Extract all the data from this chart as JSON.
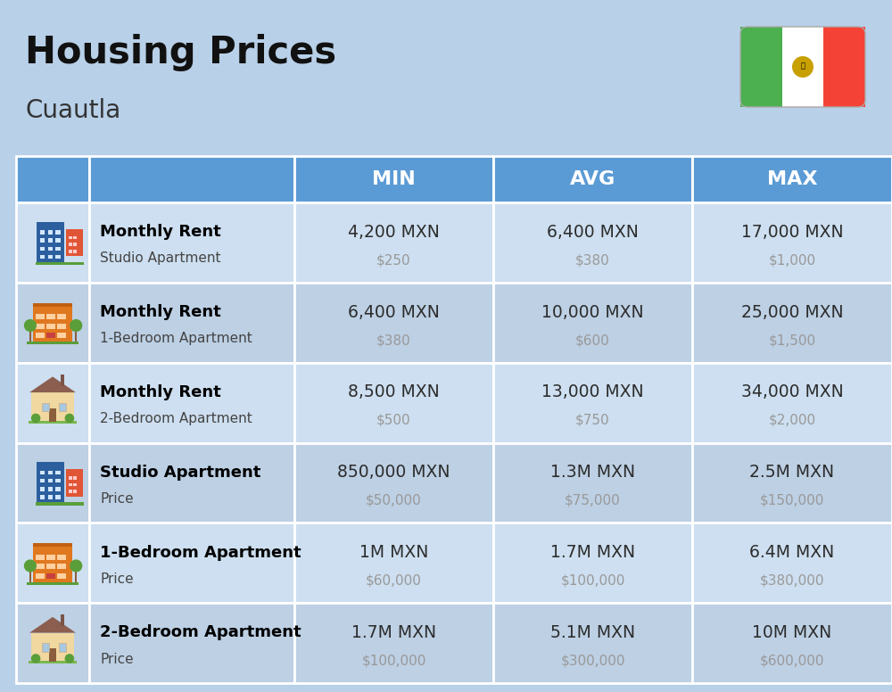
{
  "title": "Housing Prices",
  "subtitle": "Cuautla",
  "bg_color": "#b8d0e8",
  "header_bg": "#5b9bd5",
  "header_text_color": "#ffffff",
  "row_bg_light": "#cddff0",
  "row_bg_dark": "#bdd0e4",
  "col_headers": [
    "MIN",
    "AVG",
    "MAX"
  ],
  "rows": [
    {
      "bold_label": "Monthly Rent",
      "sub_label": "Studio Apartment",
      "min_main": "4,200 MXN",
      "min_sub": "$250",
      "avg_main": "6,400 MXN",
      "avg_sub": "$380",
      "max_main": "17,000 MXN",
      "max_sub": "$1,000",
      "icon_type": "blue_office"
    },
    {
      "bold_label": "Monthly Rent",
      "sub_label": "1-Bedroom Apartment",
      "min_main": "6,400 MXN",
      "min_sub": "$380",
      "avg_main": "10,000 MXN",
      "avg_sub": "$600",
      "max_main": "25,000 MXN",
      "max_sub": "$1,500",
      "icon_type": "orange_apartment"
    },
    {
      "bold_label": "Monthly Rent",
      "sub_label": "2-Bedroom Apartment",
      "min_main": "8,500 MXN",
      "min_sub": "$500",
      "avg_main": "13,000 MXN",
      "avg_sub": "$750",
      "max_main": "34,000 MXN",
      "max_sub": "$2,000",
      "icon_type": "beige_house"
    },
    {
      "bold_label": "Studio Apartment",
      "sub_label": "Price",
      "min_main": "850,000 MXN",
      "min_sub": "$50,000",
      "avg_main": "1.3M MXN",
      "avg_sub": "$75,000",
      "max_main": "2.5M MXN",
      "max_sub": "$150,000",
      "icon_type": "blue_office"
    },
    {
      "bold_label": "1-Bedroom Apartment",
      "sub_label": "Price",
      "min_main": "1M MXN",
      "min_sub": "$60,000",
      "avg_main": "1.7M MXN",
      "avg_sub": "$100,000",
      "max_main": "6.4M MXN",
      "max_sub": "$380,000",
      "icon_type": "orange_apartment"
    },
    {
      "bold_label": "2-Bedroom Apartment",
      "sub_label": "Price",
      "min_main": "1.7M MXN",
      "min_sub": "$100,000",
      "avg_main": "5.1M MXN",
      "avg_sub": "$300,000",
      "max_main": "10M MXN",
      "max_sub": "$600,000",
      "icon_type": "beige_house2"
    }
  ],
  "divider_color": "#ffffff",
  "main_value_color": "#2c2c2c",
  "sub_value_color": "#999999",
  "label_bold_color": "#000000",
  "label_sub_color": "#444444",
  "flag_green": "#4caf50",
  "flag_white": "#ffffff",
  "flag_red": "#f44336"
}
